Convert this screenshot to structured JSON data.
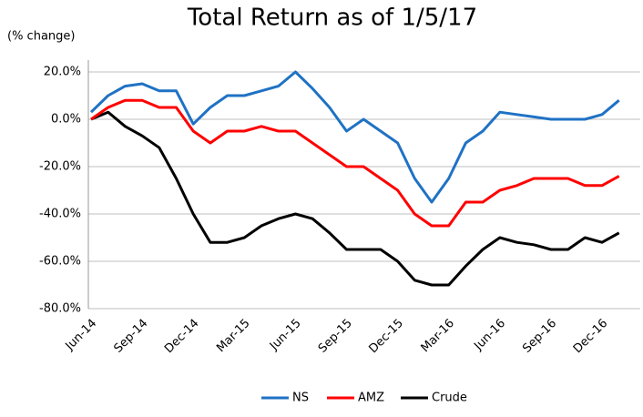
{
  "chart_data": {
    "type": "line",
    "title": "Total Return as of 1/5/17",
    "ylabel": "(% change)",
    "categories": [
      "Jun-14",
      null,
      null,
      "Sep-14",
      null,
      null,
      "Dec-14",
      null,
      null,
      "Mar-15",
      null,
      null,
      "Jun-15",
      null,
      null,
      "Sep-15",
      null,
      null,
      "Dec-15",
      null,
      null,
      "Mar-16",
      null,
      null,
      "Jun-16",
      null,
      null,
      "Sep-16",
      null,
      null,
      "Dec-16",
      null
    ],
    "series": [
      {
        "name": "NS",
        "color": "#1f72c4",
        "values": [
          3,
          10,
          14,
          15,
          12,
          12,
          -2,
          5,
          10,
          10,
          12,
          14,
          20,
          13,
          5,
          -5,
          0,
          -5,
          -10,
          -25,
          -35,
          -25,
          -10,
          -5,
          3,
          2,
          1,
          0,
          0,
          0,
          2,
          8
        ]
      },
      {
        "name": "AMZ",
        "color": "#ff0000",
        "values": [
          0,
          5,
          8,
          8,
          5,
          5,
          -5,
          -10,
          -5,
          -5,
          -3,
          -5,
          -5,
          -10,
          -15,
          -20,
          -20,
          -25,
          -30,
          -40,
          -45,
          -45,
          -35,
          -35,
          -30,
          -28,
          -25,
          -25,
          -25,
          -28,
          -28,
          -24
        ]
      },
      {
        "name": "Crude",
        "color": "#000000",
        "values": [
          0,
          3,
          -3,
          -7,
          -12,
          -25,
          -40,
          -52,
          -52,
          -50,
          -45,
          -42,
          -40,
          -42,
          -48,
          -55,
          -55,
          -55,
          -60,
          -68,
          -70,
          -70,
          -62,
          -55,
          -50,
          -52,
          -53,
          -55,
          -55,
          -50,
          -52,
          -48
        ]
      }
    ],
    "ylim": [
      -80,
      25
    ],
    "yticks": [
      {
        "value": -80,
        "label": "-80.0%"
      },
      {
        "value": -60,
        "label": "-60.0%"
      },
      {
        "value": -40,
        "label": "-40.0%"
      },
      {
        "value": -20,
        "label": "-20.0%"
      },
      {
        "value": 0,
        "label": "0.0%"
      },
      {
        "value": 20,
        "label": "20.0%"
      }
    ],
    "grid": true,
    "legend": "bottom"
  }
}
